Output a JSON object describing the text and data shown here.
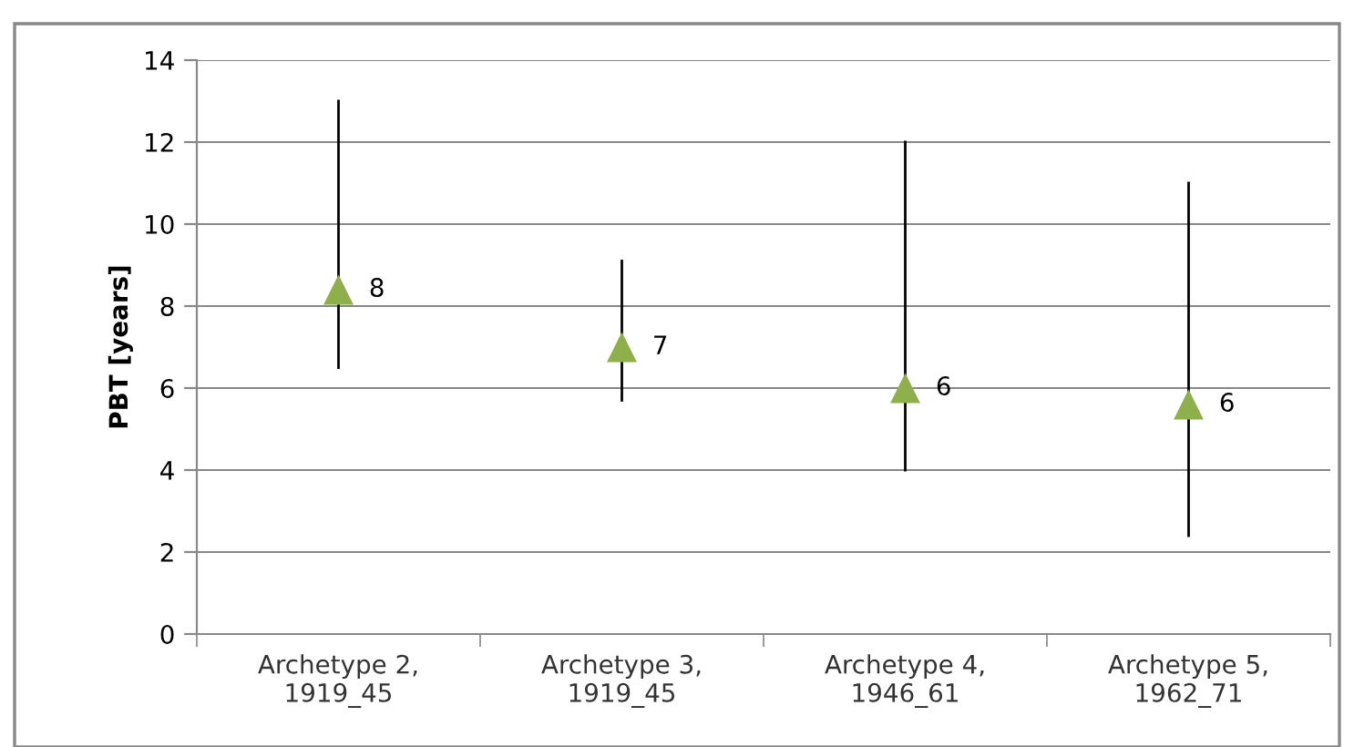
{
  "chart_data": {
    "type": "scatter",
    "ylabel": "PBT [years]",
    "categories": [
      "Archetype 2,\n1919_45",
      "Archetype 3,\n1919_45",
      "Archetype 4,\n1946_61",
      "Archetype 5,\n1962_71"
    ],
    "values": [
      8.4,
      7.0,
      6.0,
      5.6
    ],
    "color": "#8db04a",
    "marker": "triangle",
    "errors": [
      [
        6.5,
        13.0
      ],
      [
        5.7,
        9.1
      ],
      [
        4.0,
        12.0
      ],
      [
        2.4,
        11.0
      ]
    ],
    "value_labels": [
      "8",
      "7",
      "6",
      "6"
    ],
    "ylim": [
      0,
      14
    ],
    "yticks": [
      0,
      2,
      4,
      6,
      8,
      10,
      12,
      14
    ],
    "grid": "y",
    "legend": false
  }
}
